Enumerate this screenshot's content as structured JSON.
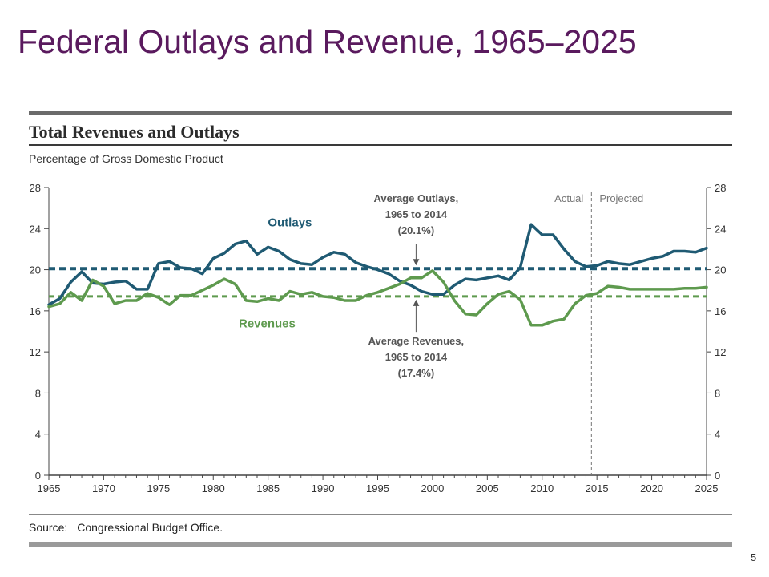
{
  "slide": {
    "title": "Federal Outlays and Revenue, 1965–2025",
    "page_number": "5"
  },
  "figure": {
    "title": "Total Revenues and Outlays",
    "subtitle": "Percentage of Gross Domestic Product",
    "source_label": "Source:",
    "source_text": "Congressional Budget Office."
  },
  "colors": {
    "outlays": "#1f5a73",
    "revenues": "#5e9a4e",
    "axis": "#444444",
    "label_text": "#555555",
    "title": "#5a1a5e"
  },
  "chart_data": {
    "type": "line",
    "x_ticks": [
      1965,
      1970,
      1975,
      1980,
      1985,
      1990,
      1995,
      2000,
      2005,
      2010,
      2015,
      2020,
      2025
    ],
    "y_ticks": [
      0,
      4,
      8,
      12,
      16,
      20,
      24,
      28
    ],
    "xlim": [
      1965,
      2025
    ],
    "ylim": [
      0,
      28
    ],
    "grid": false,
    "right_axis_mirror": true,
    "projection_start": 2014.5,
    "projection_labels": {
      "actual": "Actual",
      "projected": "Projected"
    },
    "series": [
      {
        "name": "Outlays",
        "x": [
          1965,
          1966,
          1967,
          1968,
          1969,
          1970,
          1971,
          1972,
          1973,
          1974,
          1975,
          1976,
          1977,
          1978,
          1979,
          1980,
          1981,
          1982,
          1983,
          1984,
          1985,
          1986,
          1987,
          1988,
          1989,
          1990,
          1991,
          1992,
          1993,
          1994,
          1995,
          1996,
          1997,
          1998,
          1999,
          2000,
          2001,
          2002,
          2003,
          2004,
          2005,
          2006,
          2007,
          2008,
          2009,
          2010,
          2011,
          2012,
          2013,
          2014,
          2015,
          2016,
          2017,
          2018,
          2019,
          2020,
          2021,
          2022,
          2023,
          2024,
          2025
        ],
        "values": [
          16.6,
          17.2,
          18.8,
          19.8,
          18.7,
          18.6,
          18.8,
          18.9,
          18.1,
          18.1,
          20.6,
          20.8,
          20.2,
          20.1,
          19.6,
          21.1,
          21.6,
          22.5,
          22.8,
          21.5,
          22.2,
          21.8,
          21.0,
          20.6,
          20.5,
          21.2,
          21.7,
          21.5,
          20.7,
          20.3,
          20.0,
          19.6,
          18.9,
          18.5,
          17.9,
          17.6,
          17.6,
          18.5,
          19.1,
          19.0,
          19.2,
          19.4,
          19.0,
          20.2,
          24.4,
          23.4,
          23.4,
          22.0,
          20.8,
          20.3,
          20.4,
          20.8,
          20.6,
          20.5,
          20.8,
          21.1,
          21.3,
          21.8,
          21.8,
          21.7,
          22.1
        ]
      },
      {
        "name": "Revenues",
        "x": [
          1965,
          1966,
          1967,
          1968,
          1969,
          1970,
          1971,
          1972,
          1973,
          1974,
          1975,
          1976,
          1977,
          1978,
          1979,
          1980,
          1981,
          1982,
          1983,
          1984,
          1985,
          1986,
          1987,
          1988,
          1989,
          1990,
          1991,
          1992,
          1993,
          1994,
          1995,
          1996,
          1997,
          1998,
          1999,
          2000,
          2001,
          2002,
          2003,
          2004,
          2005,
          2006,
          2007,
          2008,
          2009,
          2010,
          2011,
          2012,
          2013,
          2014,
          2015,
          2016,
          2017,
          2018,
          2019,
          2020,
          2021,
          2022,
          2023,
          2024,
          2025
        ],
        "values": [
          16.4,
          16.7,
          17.8,
          17.0,
          19.0,
          18.4,
          16.7,
          17.0,
          17.0,
          17.7,
          17.3,
          16.6,
          17.5,
          17.5,
          18.0,
          18.5,
          19.1,
          18.6,
          17.0,
          16.9,
          17.2,
          17.0,
          17.9,
          17.6,
          17.8,
          17.4,
          17.3,
          17.0,
          17.0,
          17.5,
          17.8,
          18.2,
          18.6,
          19.2,
          19.2,
          19.9,
          18.8,
          17.0,
          15.7,
          15.6,
          16.7,
          17.6,
          17.9,
          17.1,
          14.6,
          14.6,
          15.0,
          15.2,
          16.7,
          17.5,
          17.7,
          18.4,
          18.3,
          18.1,
          18.1,
          18.1,
          18.1,
          18.1,
          18.2,
          18.2,
          18.3
        ]
      }
    ],
    "reference_lines": [
      {
        "name": "Average Outlays",
        "value": 20.1
      },
      {
        "name": "Average Revenues",
        "value": 17.4
      }
    ],
    "annotations": {
      "outlays_label": "Outlays",
      "revenues_label": "Revenues",
      "avg_outlays": [
        "Average Outlays,",
        "1965 to 2014",
        "(20.1%)"
      ],
      "avg_revenues": [
        "Average Revenues,",
        "1965 to 2014",
        "(17.4%)"
      ]
    }
  }
}
